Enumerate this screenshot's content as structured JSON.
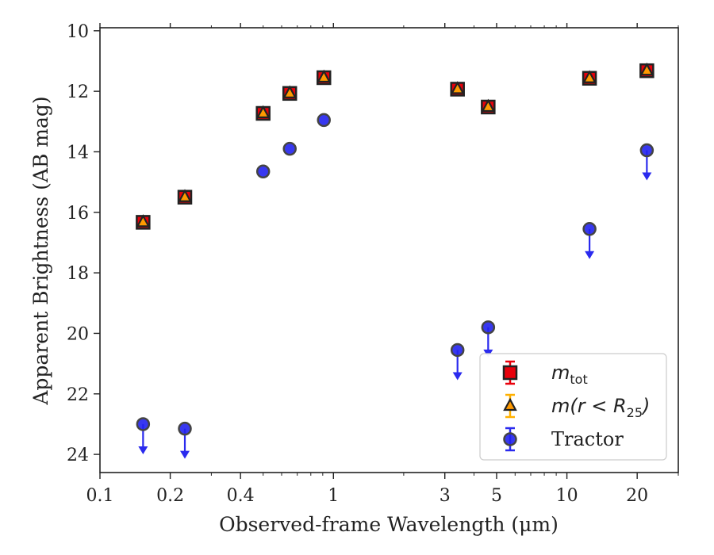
{
  "chart_data": {
    "type": "scatter",
    "xlabel": "Observed-frame Wavelength (μm)",
    "ylabel": "Apparent Brightness (AB mag)",
    "xscale": "log",
    "xlim": [
      0.1,
      30
    ],
    "ylim": [
      24.6,
      9.9
    ],
    "y_inverted": true,
    "x_ticks": [
      {
        "value": 0.1,
        "label": "0.1"
      },
      {
        "value": 0.2,
        "label": "0.2"
      },
      {
        "value": 0.4,
        "label": "0.4"
      },
      {
        "value": 1,
        "label": "1"
      },
      {
        "value": 3,
        "label": "3"
      },
      {
        "value": 5,
        "label": "5"
      },
      {
        "value": 10,
        "label": "10"
      },
      {
        "value": 20,
        "label": "20"
      }
    ],
    "y_ticks": [
      10,
      12,
      14,
      16,
      18,
      20,
      22,
      24
    ],
    "grid": false,
    "legend_position": "lower-right",
    "series": [
      {
        "name": "m_tot",
        "marker": "square",
        "color": "#e8000b",
        "edge": "#222222",
        "x": [
          0.153,
          0.231,
          0.5,
          0.65,
          0.91,
          3.4,
          4.6,
          12.5,
          22.0
        ],
        "y": [
          16.33,
          15.5,
          12.73,
          12.07,
          11.55,
          11.93,
          12.52,
          11.57,
          11.32
        ]
      },
      {
        "name": "m(r<R25)",
        "marker": "triangle",
        "color": "#ff9a00",
        "edge": "#222222",
        "x": [
          0.153,
          0.231,
          0.5,
          0.65,
          0.91,
          3.4,
          4.6,
          12.5,
          22.0
        ],
        "y": [
          16.33,
          15.5,
          12.73,
          12.07,
          11.55,
          11.93,
          12.52,
          11.57,
          11.32
        ]
      },
      {
        "name": "Tractor",
        "marker": "circle",
        "color": "#2222ee",
        "edge": "#444444",
        "x": [
          0.153,
          0.231,
          0.5,
          0.65,
          0.91,
          3.4,
          4.6,
          12.5,
          22.0
        ],
        "y": [
          23.0,
          23.15,
          14.65,
          13.9,
          12.95,
          20.55,
          19.8,
          16.55,
          13.95
        ],
        "upper_limit": [
          true,
          true,
          false,
          false,
          false,
          true,
          true,
          true,
          true
        ]
      }
    ],
    "legend": [
      {
        "label_main": "m",
        "label_sub": "tot",
        "label_suffix": ""
      },
      {
        "label_main": "m(r < R",
        "label_sub": "25",
        "label_suffix": ")"
      },
      {
        "label_main": "Tractor",
        "label_sub": "",
        "label_suffix": ""
      }
    ]
  }
}
